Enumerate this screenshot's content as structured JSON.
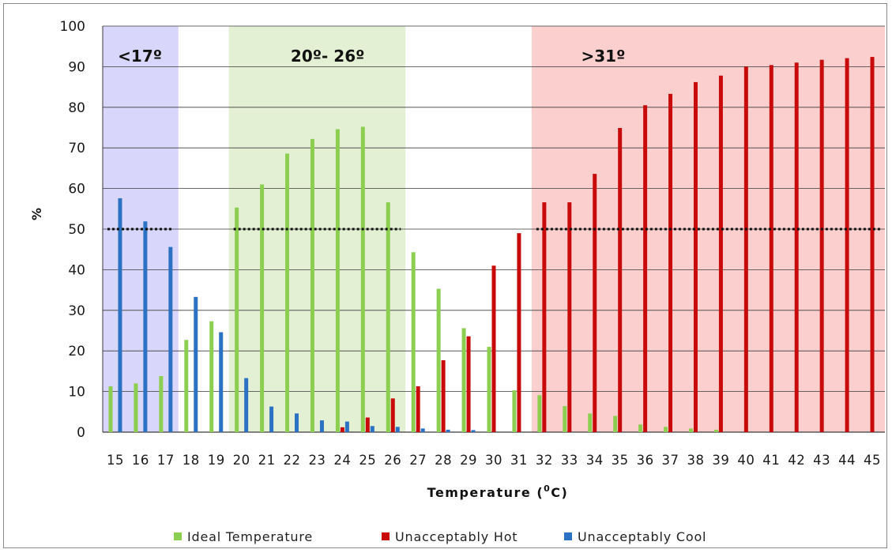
{
  "chart_data": {
    "type": "bar",
    "xlabel": "Temperature (",
    "xlabel_sup": "0",
    "xlabel_end": "C)",
    "ylabel": "%",
    "ylim": [
      0,
      100
    ],
    "yticks": [
      0,
      10,
      20,
      30,
      40,
      50,
      60,
      70,
      80,
      90,
      100
    ],
    "grid": true,
    "legend_position": "bottom",
    "categories": [
      "15",
      "16",
      "17",
      "18",
      "19",
      "20",
      "21",
      "22",
      "23",
      "24",
      "25",
      "26",
      "27",
      "28",
      "29",
      "30",
      "31",
      "32",
      "33",
      "34",
      "35",
      "36",
      "37",
      "38",
      "39",
      "40",
      "41",
      "42",
      "43",
      "44",
      "45"
    ],
    "series": [
      {
        "name": "Ideal Temperature",
        "color": "#8ccf50",
        "values": [
          11.3,
          12.0,
          13.8,
          22.7,
          27.3,
          55.3,
          61.0,
          68.6,
          72.2,
          74.6,
          75.2,
          56.6,
          44.3,
          35.3,
          25.6,
          21.0,
          10.3,
          9.1,
          6.4,
          4.6,
          4.0,
          1.9,
          1.3,
          0.9,
          0.6,
          0,
          0,
          0,
          0,
          0,
          0
        ]
      },
      {
        "name": "Unacceptably Hot",
        "color": "#c80a0a",
        "values": [
          0,
          0,
          0,
          0,
          0,
          0,
          0,
          0,
          0,
          1.2,
          3.6,
          8.3,
          11.3,
          17.7,
          23.6,
          41.0,
          49.0,
          56.6,
          56.6,
          63.6,
          74.9,
          80.5,
          83.3,
          86.2,
          87.8,
          90.0,
          90.4,
          91.0,
          91.7,
          92.1,
          92.4
        ]
      },
      {
        "name": "Unacceptably Cool",
        "color": "#2b72c4",
        "values": [
          57.6,
          51.9,
          45.6,
          33.3,
          24.6,
          13.3,
          6.3,
          4.6,
          2.9,
          2.6,
          1.5,
          1.3,
          0.9,
          0.6,
          0.5,
          0,
          0,
          0,
          0,
          0,
          0,
          0,
          0,
          0,
          0,
          0,
          0,
          0,
          0,
          0,
          0
        ]
      }
    ],
    "threshold": {
      "value": 50,
      "style": "dotted",
      "color": "#111111"
    },
    "zones": [
      {
        "label": "<17º",
        "from_index": 0,
        "to_index": 2,
        "color": "#d9d6fb"
      },
      {
        "label": "20º- 26º",
        "from_index": 5,
        "to_index": 11,
        "color": "#e4f0d4"
      },
      {
        "label": ">31º",
        "from_index": 17,
        "to_index": 30,
        "color": "#fccfcf"
      }
    ]
  }
}
